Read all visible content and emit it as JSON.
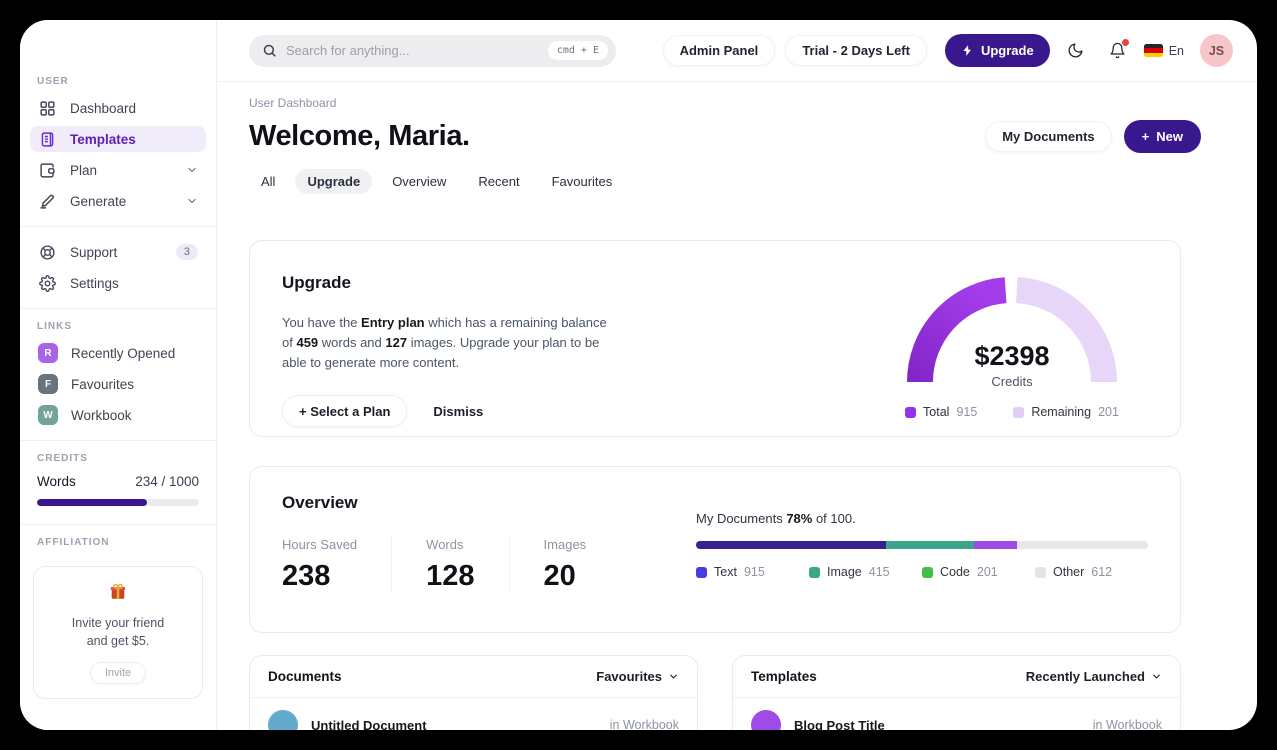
{
  "colors": {
    "brand_dark": "#38188c",
    "accent_purple": "#9333ea",
    "accent_purple_light": "#e9d5ff",
    "active_item_bg": "#f1ecfa",
    "notification_red": "#e1493f"
  },
  "topbar": {
    "search_placeholder": "Search for anything...",
    "search_shortcut": "cmd + E",
    "admin_panel_label": "Admin Panel",
    "trial_label": "Trial - 2 Days Left",
    "upgrade_label": "Upgrade",
    "language_label": "En",
    "avatar_initials": "JS"
  },
  "sidebar": {
    "user_section_label": "USER",
    "user_items": [
      {
        "label": "Dashboard"
      },
      {
        "label": "Templates"
      },
      {
        "label": "Plan"
      },
      {
        "label": "Generate"
      }
    ],
    "secondary_items": [
      {
        "label": "Support",
        "badge": "3"
      },
      {
        "label": "Settings"
      }
    ],
    "links_section_label": "LINKS",
    "links": [
      {
        "label": "Recently Opened",
        "initial": "R",
        "color": "#a963e8"
      },
      {
        "label": "Favourites",
        "initial": "F",
        "color": "#6b7280"
      },
      {
        "label": "Workbook",
        "initial": "W",
        "color": "#74a39b"
      }
    ],
    "credits_section_label": "CREDITS",
    "credits": {
      "label": "Words",
      "value": "234 / 1000",
      "fill_width": "68%"
    },
    "affiliation_section_label": "AFFILIATION",
    "affiliation": {
      "line1": "Invite your friend",
      "line2": "and get $5.",
      "button_label": "Invite"
    }
  },
  "header": {
    "breadcrumb": "User Dashboard",
    "title": "Welcome, Maria.",
    "my_documents_label": "My Documents",
    "new_label": "New",
    "tabs": [
      {
        "label": "All"
      },
      {
        "label": "Upgrade"
      },
      {
        "label": "Overview"
      },
      {
        "label": "Recent"
      },
      {
        "label": "Favourites"
      }
    ]
  },
  "upgrade_card": {
    "title": "Upgrade",
    "body_prefix": "You have the ",
    "plan_name": "Entry plan",
    "body_mid1": " which has a remaining balance of ",
    "words_value": "459",
    "body_mid2": " words and ",
    "images_value": "127",
    "body_suffix": " images. Upgrade your plan to be able to generate more content.",
    "select_plan_label": "+ Select a Plan",
    "dismiss_label": "Dismiss",
    "gauge": {
      "amount": "$2398",
      "caption": "Credits",
      "total_label": "Total",
      "total_value": "915",
      "total_color": "#9333ea",
      "remaining_label": "Remaining",
      "remaining_value": "201",
      "remaining_color": "#e2ccf5"
    }
  },
  "overview_card": {
    "title": "Overview",
    "stats": [
      {
        "label": "Hours Saved",
        "value": "238"
      },
      {
        "label": "Words",
        "value": "128"
      },
      {
        "label": "Images",
        "value": "20"
      }
    ],
    "docs_progress": {
      "prefix": "My Documents ",
      "percent": "78%",
      "suffix": " of 100.",
      "segments": [
        {
          "label": "Text",
          "value": "915",
          "legend_color": "#4b3ce0",
          "bar_color": "#3a2191",
          "width": "42%"
        },
        {
          "label": "Image",
          "value": "415",
          "legend_color": "#3da58a",
          "bar_color": "#3da58a",
          "width": "19.5%"
        },
        {
          "label": "Code",
          "value": "201",
          "legend_color": "#3fbf44",
          "bar_color": "#a04ae8",
          "width": "9.5%"
        },
        {
          "label": "Other",
          "value": "612",
          "legend_color": "#e4e4e8",
          "bar_color": "#e8e8eb",
          "width": "29%"
        }
      ]
    }
  },
  "documents_card": {
    "title": "Documents",
    "filter_label": "Favourites",
    "items": [
      {
        "title": "Untitled Document",
        "location": "in Workbook",
        "color": "#64aacd"
      }
    ]
  },
  "templates_card": {
    "title": "Templates",
    "filter_label": "Recently Launched",
    "items": [
      {
        "title": "Blog Post Title",
        "location": "in Workbook",
        "color": "#a04ae8"
      }
    ]
  }
}
